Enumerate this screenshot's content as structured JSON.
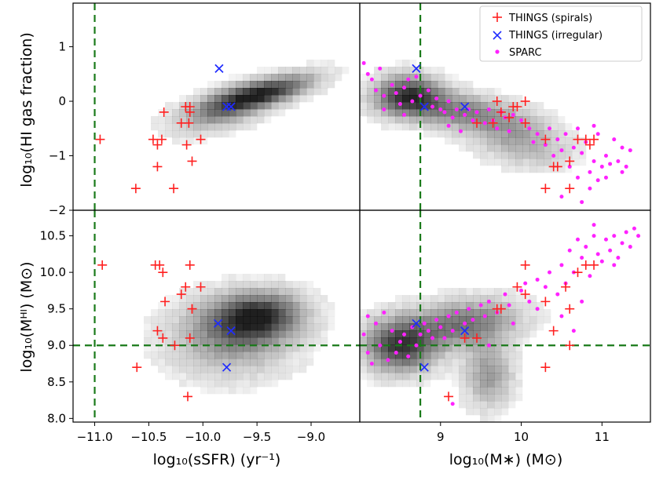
{
  "chart_data": {
    "type": "scatter",
    "legend": {
      "placement": "top-right",
      "entries": [
        {
          "key": "spirals",
          "label": "THINGS (spirals)",
          "marker": "plus",
          "color": "#ff2020"
        },
        {
          "key": "irregular",
          "label": "THINGS (irregular)",
          "marker": "x",
          "color": "#1f2bff"
        },
        {
          "key": "sparc",
          "label": "SPARC",
          "marker": "dot",
          "color": "#ff22ff"
        }
      ]
    },
    "x_axes": {
      "ssfr": {
        "label": "log₁₀(sSFR) (yr⁻¹)",
        "range": [
          -11.2,
          -8.55
        ],
        "ticks": [
          -11.0,
          -10.5,
          -10.0,
          -9.5,
          -9.0
        ],
        "tick_labels": [
          "−11.0",
          "−10.5",
          "−10.0",
          "−9.5",
          "−9.0"
        ]
      },
      "mstar": {
        "label": "log₁₀(M∗) (M⊙)",
        "range": [
          8.0,
          11.6
        ],
        "ticks": [
          9,
          10,
          11
        ],
        "tick_labels": [
          "9",
          "10",
          "11"
        ]
      }
    },
    "y_axes": {
      "gasfrac": {
        "label": "log₁₀(HI gas fraction)",
        "range": [
          -2.0,
          1.8
        ],
        "ticks": [
          -2,
          -1,
          0,
          1
        ],
        "tick_labels": [
          "−2",
          "−1",
          "0",
          "1"
        ]
      },
      "mhi": {
        "label": "log₁₀(Mᴴᴵ) (M⊙)",
        "range": [
          7.95,
          10.85
        ],
        "ticks": [
          8.0,
          8.5,
          9.0,
          9.5,
          10.0,
          10.5
        ],
        "tick_labels": [
          "8.0",
          "8.5",
          "9.0",
          "9.5",
          "10.0",
          "10.5"
        ]
      }
    },
    "reference_lines": {
      "ssfr": -11.0,
      "mstar": 8.75,
      "mhi": 9.0
    },
    "density_background": {
      "color": "#000000",
      "ssfr_gasfrac": [
        {
          "x": -9.45,
          "y": 0.15,
          "sx": 0.32,
          "sy": 0.23,
          "rho": 0.7,
          "w": 1.0
        },
        {
          "x": -9.8,
          "y": -0.15,
          "sx": 0.3,
          "sy": 0.28,
          "rho": 0.5,
          "w": 0.5
        }
      ],
      "ssfr_mhi": [
        {
          "x": -9.5,
          "y": 9.4,
          "sx": 0.28,
          "sy": 0.22,
          "rho": 0.1,
          "w": 1.0
        },
        {
          "x": -9.75,
          "y": 9.1,
          "sx": 0.38,
          "sy": 0.35,
          "rho": 0.0,
          "w": 0.5
        }
      ],
      "mstar_gasfrac": [
        {
          "x": 8.6,
          "y": 0.1,
          "sx": 0.28,
          "sy": 0.25,
          "rho": 0.0,
          "w": 1.0
        },
        {
          "x": 9.3,
          "y": -0.2,
          "sx": 0.5,
          "sy": 0.25,
          "rho": -0.4,
          "w": 0.6
        },
        {
          "x": 10.0,
          "y": -0.75,
          "sx": 0.4,
          "sy": 0.3,
          "rho": -0.3,
          "w": 0.4
        }
      ],
      "mstar_mhi": [
        {
          "x": 8.5,
          "y": 9.0,
          "sx": 0.3,
          "sy": 0.25,
          "rho": 0.0,
          "w": 1.0
        },
        {
          "x": 9.3,
          "y": 9.3,
          "sx": 0.45,
          "sy": 0.22,
          "rho": 0.2,
          "w": 0.7
        },
        {
          "x": 9.6,
          "y": 8.6,
          "sx": 0.2,
          "sy": 0.3,
          "rho": 0.0,
          "w": 0.5
        }
      ]
    },
    "series": {
      "spirals": {
        "ssfr_gasfrac": [
          [
            -10.95,
            -0.7
          ],
          [
            -10.62,
            -1.6
          ],
          [
            -10.46,
            -0.7
          ],
          [
            -10.42,
            -0.8
          ],
          [
            -10.42,
            -1.2
          ],
          [
            -10.38,
            -0.7
          ],
          [
            -10.36,
            -0.2
          ],
          [
            -10.27,
            -1.6
          ],
          [
            -10.2,
            -0.4
          ],
          [
            -10.16,
            -0.1
          ],
          [
            -10.15,
            -0.8
          ],
          [
            -10.13,
            -0.4
          ],
          [
            -10.12,
            -0.2
          ],
          [
            -10.12,
            -0.1
          ],
          [
            -10.1,
            -1.1
          ],
          [
            -10.02,
            -0.7
          ]
        ],
        "ssfr_mhi": [
          [
            -10.93,
            10.1
          ],
          [
            -10.61,
            8.7
          ],
          [
            -10.44,
            10.1
          ],
          [
            -10.4,
            10.1
          ],
          [
            -10.42,
            9.2
          ],
          [
            -10.37,
            10.0
          ],
          [
            -10.37,
            9.1
          ],
          [
            -10.35,
            9.6
          ],
          [
            -10.26,
            9.0
          ],
          [
            -10.2,
            9.7
          ],
          [
            -10.16,
            9.8
          ],
          [
            -10.14,
            8.3
          ],
          [
            -10.12,
            10.1
          ],
          [
            -10.12,
            9.1
          ],
          [
            -10.1,
            9.5
          ],
          [
            -10.1,
            9.5
          ],
          [
            -10.02,
            9.8
          ]
        ],
        "mstar_gasfrac": [
          [
            9.45,
            -0.4
          ],
          [
            9.65,
            -0.4
          ],
          [
            9.7,
            0.0
          ],
          [
            9.75,
            -0.2
          ],
          [
            9.85,
            -0.3
          ],
          [
            9.9,
            -0.1
          ],
          [
            9.95,
            -0.1
          ],
          [
            10.05,
            0.0
          ],
          [
            10.05,
            -0.4
          ],
          [
            10.3,
            -0.7
          ],
          [
            10.3,
            -1.6
          ],
          [
            10.4,
            -1.2
          ],
          [
            10.45,
            -1.2
          ],
          [
            10.6,
            -1.1
          ],
          [
            10.6,
            -1.6
          ],
          [
            10.7,
            -0.7
          ],
          [
            10.8,
            -0.7
          ],
          [
            10.85,
            -0.8
          ],
          [
            10.9,
            -0.7
          ]
        ],
        "mstar_mhi": [
          [
            9.1,
            8.3
          ],
          [
            9.3,
            9.1
          ],
          [
            9.45,
            9.1
          ],
          [
            9.7,
            9.5
          ],
          [
            9.75,
            9.5
          ],
          [
            9.95,
            9.8
          ],
          [
            10.05,
            10.1
          ],
          [
            10.05,
            9.7
          ],
          [
            10.3,
            9.6
          ],
          [
            10.3,
            8.7
          ],
          [
            10.4,
            9.2
          ],
          [
            10.55,
            9.8
          ],
          [
            10.6,
            9.5
          ],
          [
            10.6,
            9.0
          ],
          [
            10.7,
            10.0
          ],
          [
            10.8,
            10.1
          ],
          [
            10.9,
            10.1
          ]
        ]
      },
      "irregular": {
        "ssfr_gasfrac": [
          [
            -9.85,
            0.6
          ],
          [
            -9.78,
            -0.1
          ],
          [
            -9.74,
            -0.1
          ]
        ],
        "ssfr_mhi": [
          [
            -9.86,
            9.3
          ],
          [
            -9.78,
            8.7
          ],
          [
            -9.74,
            9.2
          ]
        ],
        "mstar_gasfrac": [
          [
            8.7,
            0.6
          ],
          [
            8.8,
            -0.1
          ],
          [
            9.3,
            -0.1
          ]
        ],
        "mstar_mhi": [
          [
            8.7,
            9.3
          ],
          [
            8.8,
            8.7
          ],
          [
            9.3,
            9.2
          ]
        ]
      },
      "sparc": {
        "mstar_gasfrac": [
          [
            8.05,
            0.7
          ],
          [
            8.1,
            0.5
          ],
          [
            8.15,
            0.4
          ],
          [
            8.25,
            0.6
          ],
          [
            8.2,
            0.2
          ],
          [
            8.3,
            0.1
          ],
          [
            8.4,
            0.3
          ],
          [
            8.45,
            0.15
          ],
          [
            8.5,
            -0.05
          ],
          [
            8.55,
            0.25
          ],
          [
            8.6,
            0.4
          ],
          [
            8.65,
            0.0
          ],
          [
            8.7,
            0.45
          ],
          [
            8.75,
            0.1
          ],
          [
            8.85,
            0.2
          ],
          [
            8.9,
            -0.1
          ],
          [
            8.95,
            0.05
          ],
          [
            9.0,
            -0.15
          ],
          [
            9.05,
            -0.2
          ],
          [
            9.1,
            0.0
          ],
          [
            9.15,
            -0.3
          ],
          [
            9.2,
            -0.15
          ],
          [
            9.3,
            -0.25
          ],
          [
            9.35,
            -0.15
          ],
          [
            9.4,
            -0.35
          ],
          [
            9.45,
            -0.2
          ],
          [
            9.55,
            -0.4
          ],
          [
            9.6,
            -0.15
          ],
          [
            9.65,
            -0.35
          ],
          [
            9.7,
            -0.5
          ],
          [
            9.75,
            -0.2
          ],
          [
            9.8,
            -0.3
          ],
          [
            9.85,
            -0.55
          ],
          [
            9.9,
            -0.25
          ],
          [
            10.0,
            -0.35
          ],
          [
            10.1,
            -0.5
          ],
          [
            10.15,
            -0.75
          ],
          [
            10.2,
            -0.6
          ],
          [
            10.3,
            -0.8
          ],
          [
            10.35,
            -0.5
          ],
          [
            10.4,
            -1.0
          ],
          [
            10.45,
            -0.7
          ],
          [
            10.5,
            -0.9
          ],
          [
            10.55,
            -0.6
          ],
          [
            10.6,
            -1.2
          ],
          [
            10.65,
            -0.85
          ],
          [
            10.7,
            -1.4
          ],
          [
            10.75,
            -0.95
          ],
          [
            10.8,
            -0.75
          ],
          [
            10.85,
            -1.3
          ],
          [
            10.9,
            -1.1
          ],
          [
            10.95,
            -0.6
          ],
          [
            11.0,
            -1.2
          ],
          [
            11.05,
            -1.0
          ],
          [
            11.1,
            -1.15
          ],
          [
            11.15,
            -0.7
          ],
          [
            11.2,
            -1.1
          ],
          [
            11.25,
            -0.85
          ],
          [
            11.3,
            -1.2
          ],
          [
            11.35,
            -0.9
          ],
          [
            10.75,
            -1.85
          ],
          [
            10.85,
            -1.6
          ],
          [
            10.95,
            -1.45
          ],
          [
            11.05,
            -1.4
          ],
          [
            10.9,
            -0.45
          ],
          [
            10.7,
            -0.5
          ],
          [
            9.1,
            -0.45
          ],
          [
            9.25,
            -0.55
          ],
          [
            8.3,
            -0.15
          ],
          [
            8.55,
            -0.25
          ],
          [
            10.5,
            -1.75
          ],
          [
            11.25,
            -1.3
          ]
        ],
        "mstar_mhi": [
          [
            8.05,
            9.15
          ],
          [
            8.1,
            8.9
          ],
          [
            8.15,
            8.75
          ],
          [
            8.2,
            9.3
          ],
          [
            8.25,
            9.0
          ],
          [
            8.35,
            8.8
          ],
          [
            8.4,
            9.2
          ],
          [
            8.45,
            8.9
          ],
          [
            8.5,
            9.05
          ],
          [
            8.55,
            9.15
          ],
          [
            8.6,
            8.85
          ],
          [
            8.65,
            9.25
          ],
          [
            8.7,
            9.0
          ],
          [
            8.75,
            9.15
          ],
          [
            8.8,
            9.3
          ],
          [
            8.85,
            9.2
          ],
          [
            8.9,
            9.1
          ],
          [
            8.95,
            9.35
          ],
          [
            9.0,
            9.25
          ],
          [
            9.05,
            9.1
          ],
          [
            9.1,
            9.4
          ],
          [
            9.15,
            9.2
          ],
          [
            9.2,
            9.45
          ],
          [
            9.3,
            9.3
          ],
          [
            9.35,
            9.5
          ],
          [
            9.4,
            9.35
          ],
          [
            9.5,
            9.55
          ],
          [
            9.55,
            9.4
          ],
          [
            9.6,
            9.6
          ],
          [
            9.7,
            9.45
          ],
          [
            9.8,
            9.7
          ],
          [
            9.85,
            9.55
          ],
          [
            9.9,
            9.3
          ],
          [
            10.0,
            9.75
          ],
          [
            10.05,
            9.85
          ],
          [
            10.1,
            9.6
          ],
          [
            10.2,
            9.9
          ],
          [
            10.3,
            9.8
          ],
          [
            10.35,
            10.0
          ],
          [
            10.45,
            9.7
          ],
          [
            10.5,
            10.1
          ],
          [
            10.55,
            9.85
          ],
          [
            10.6,
            10.3
          ],
          [
            10.65,
            10.0
          ],
          [
            10.7,
            10.45
          ],
          [
            10.75,
            10.2
          ],
          [
            10.8,
            10.35
          ],
          [
            10.85,
            9.95
          ],
          [
            10.9,
            10.5
          ],
          [
            10.95,
            10.25
          ],
          [
            11.0,
            10.15
          ],
          [
            11.05,
            10.45
          ],
          [
            11.1,
            10.3
          ],
          [
            11.15,
            10.5
          ],
          [
            11.2,
            10.2
          ],
          [
            11.25,
            10.4
          ],
          [
            11.3,
            10.55
          ],
          [
            11.35,
            10.35
          ],
          [
            11.4,
            10.6
          ],
          [
            11.45,
            10.5
          ],
          [
            10.5,
            9.4
          ],
          [
            10.65,
            9.2
          ],
          [
            10.75,
            9.6
          ],
          [
            9.15,
            8.2
          ],
          [
            8.3,
            9.45
          ],
          [
            8.1,
            9.4
          ],
          [
            9.6,
            9.0
          ],
          [
            10.2,
            9.5
          ],
          [
            10.9,
            10.65
          ],
          [
            11.15,
            10.1
          ]
        ]
      }
    }
  }
}
